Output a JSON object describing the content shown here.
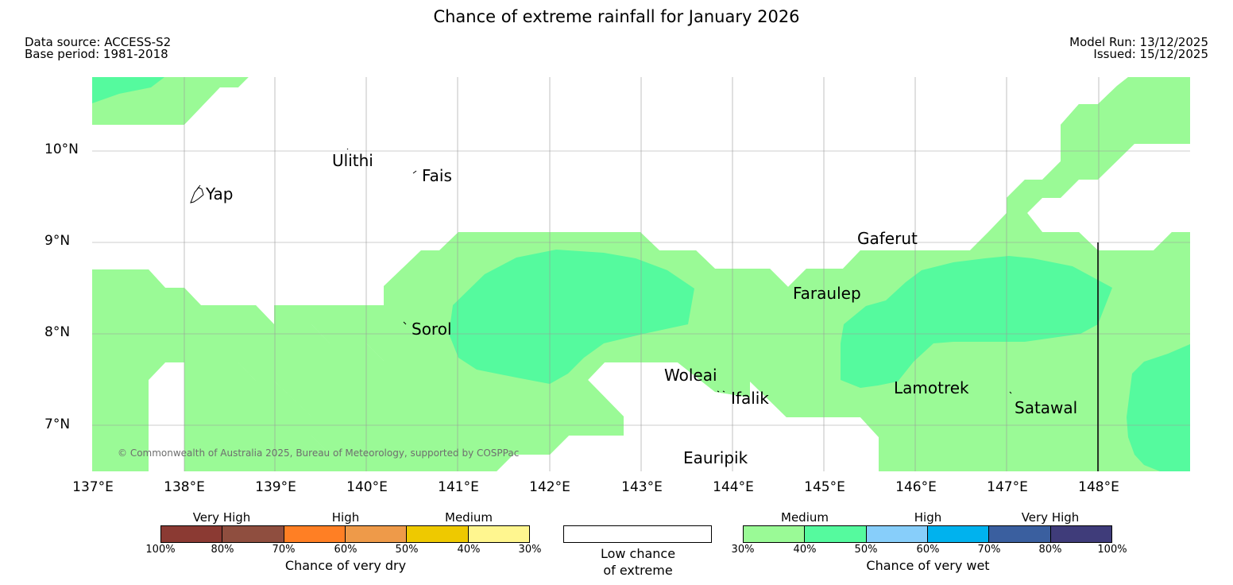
{
  "title": "Chance of extreme rainfall for January 2026",
  "meta": {
    "data_source": "Data source: ACCESS-S2",
    "base_period": "Base period: 1981-2018",
    "model_run": "Model Run: 13/12/2025",
    "issued": "Issued: 15/12/2025"
  },
  "map": {
    "lon_labels": [
      "137°E",
      "138°E",
      "139°E",
      "140°E",
      "141°E",
      "142°E",
      "143°E",
      "144°E",
      "145°E",
      "146°E",
      "147°E",
      "148°E"
    ],
    "lat_labels": [
      "10°N",
      "9°N",
      "8°N",
      "7°N"
    ],
    "places": [
      "Ulithi",
      "Fais",
      "Yap",
      "Gaferut",
      "Faraulep",
      "Sorol",
      "Woleai",
      "Ifalik",
      "Lamotrek",
      "Satawal",
      "Eauripik"
    ],
    "copyright": "© Commonwealth of Australia 2025, Bureau of Meteorology, supported by COSPPac",
    "colors": {
      "medium_wet": "#9afa96",
      "high_wet_40": "#55fa9e",
      "land": "#ffffff",
      "grid": "#999999"
    }
  },
  "legend": {
    "dry": {
      "categories": [
        "Very High",
        "High",
        "Medium"
      ],
      "ticks": [
        "100%",
        "80%",
        "70%",
        "60%",
        "50%",
        "40%",
        "30%"
      ],
      "colors": [
        "#8b3a33",
        "#8f4e3f",
        "#ff7f24",
        "#ee9a49",
        "#eec900",
        "#fff68f"
      ],
      "caption": "Chance of very dry"
    },
    "low": {
      "caption_line1": "Low chance",
      "caption_line2": "of extreme",
      "color": "#ffffff"
    },
    "wet": {
      "categories": [
        "Medium",
        "High",
        "Very High"
      ],
      "ticks": [
        "30%",
        "40%",
        "50%",
        "60%",
        "70%",
        "80%",
        "100%"
      ],
      "colors": [
        "#9afa96",
        "#55fa9e",
        "#87cefa",
        "#00b2ee",
        "#3a5f9f",
        "#3f3c7a"
      ],
      "caption": "Chance of very wet"
    }
  }
}
